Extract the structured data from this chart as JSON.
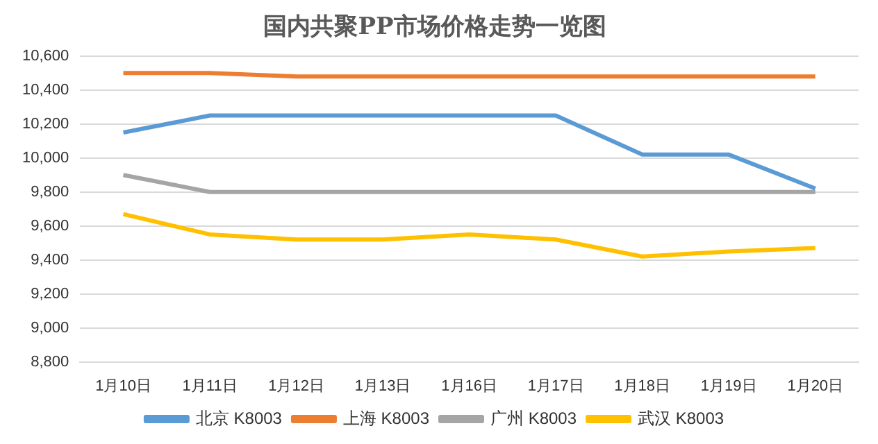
{
  "chart_data": {
    "type": "line",
    "title": "国内共聚PP市场价格走势一览图",
    "categories": [
      "1月10日",
      "1月11日",
      "1月12日",
      "1月13日",
      "1月16日",
      "1月17日",
      "1月18日",
      "1月19日",
      "1月20日"
    ],
    "series": [
      {
        "name": "北京 K8003",
        "color": "#5b9bd5",
        "values": [
          10150,
          10250,
          10250,
          10250,
          10250,
          10250,
          10020,
          10020,
          9820
        ]
      },
      {
        "name": "上海 K8003",
        "color": "#ed7d31",
        "values": [
          10500,
          10500,
          10480,
          10480,
          10480,
          10480,
          10480,
          10480,
          10480
        ]
      },
      {
        "name": "广州 K8003",
        "color": "#a5a5a5",
        "values": [
          9900,
          9800,
          9800,
          9800,
          9800,
          9800,
          9800,
          9800,
          9800
        ]
      },
      {
        "name": "武汉 K8003",
        "color": "#ffc000",
        "values": [
          9670,
          9550,
          9520,
          9520,
          9550,
          9520,
          9420,
          9450,
          9470
        ]
      }
    ],
    "ylim": [
      8800,
      10600
    ],
    "yticks": [
      {
        "value": 8800,
        "label": "8,800"
      },
      {
        "value": 9000,
        "label": "9,000"
      },
      {
        "value": 9200,
        "label": "9,200"
      },
      {
        "value": 9400,
        "label": "9,400"
      },
      {
        "value": 9600,
        "label": "9,600"
      },
      {
        "value": 9800,
        "label": "9,800"
      },
      {
        "value": 10000,
        "label": "10,000"
      },
      {
        "value": 10200,
        "label": "10,200"
      },
      {
        "value": 10400,
        "label": "10,400"
      },
      {
        "value": 10600,
        "label": "10,600"
      }
    ],
    "grid": "y",
    "legend": "bottom",
    "marker": "none",
    "line_style": "solid"
  }
}
